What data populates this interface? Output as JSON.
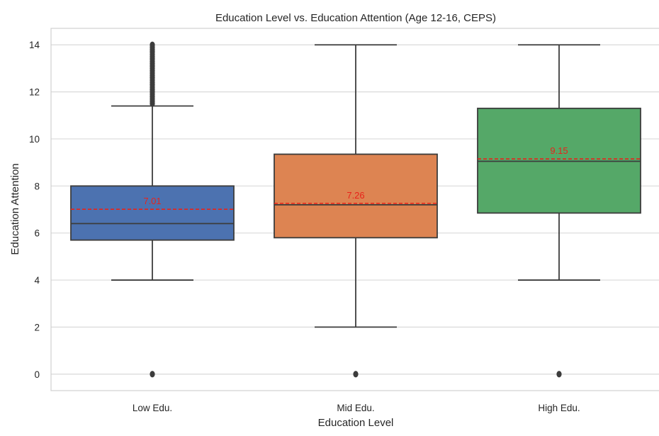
{
  "chart_data": {
    "type": "box",
    "title": "Education Level vs. Education Attention (Age 12-16, CEPS)",
    "xlabel": "Education Level",
    "ylabel": "Education Attention",
    "ylim": [
      -0.7,
      14.7
    ],
    "yticks": [
      0,
      2,
      4,
      6,
      8,
      10,
      12,
      14
    ],
    "grid": true,
    "categories": [
      "Low Edu.",
      "Mid Edu.",
      "High Edu."
    ],
    "boxes": [
      {
        "category": "Low Edu.",
        "color": "#4c72b0",
        "whisker_low": 4,
        "q1": 5.7,
        "median": 6.4,
        "q3": 8.0,
        "whisker_high": 11.4,
        "mean": 7.01,
        "mean_label": "7.01",
        "fliers": [
          0,
          11.5,
          11.6,
          11.7,
          11.8,
          11.9,
          12.0,
          12.1,
          12.2,
          12.3,
          12.4,
          12.5,
          12.6,
          12.7,
          12.8,
          12.9,
          13.0,
          13.1,
          13.2,
          13.3,
          13.4,
          13.5,
          13.6,
          13.7,
          13.8,
          13.9,
          14.0
        ]
      },
      {
        "category": "Mid Edu.",
        "color": "#dd8452",
        "whisker_low": 2,
        "q1": 5.8,
        "median": 7.2,
        "q3": 9.35,
        "whisker_high": 14,
        "mean": 7.26,
        "mean_label": "7.26",
        "fliers": [
          0
        ]
      },
      {
        "category": "High Edu.",
        "color": "#55a868",
        "whisker_low": 4,
        "q1": 6.85,
        "median": 9.05,
        "q3": 11.3,
        "whisker_high": 14,
        "mean": 9.15,
        "mean_label": "9.15",
        "fliers": [
          0
        ]
      }
    ]
  }
}
